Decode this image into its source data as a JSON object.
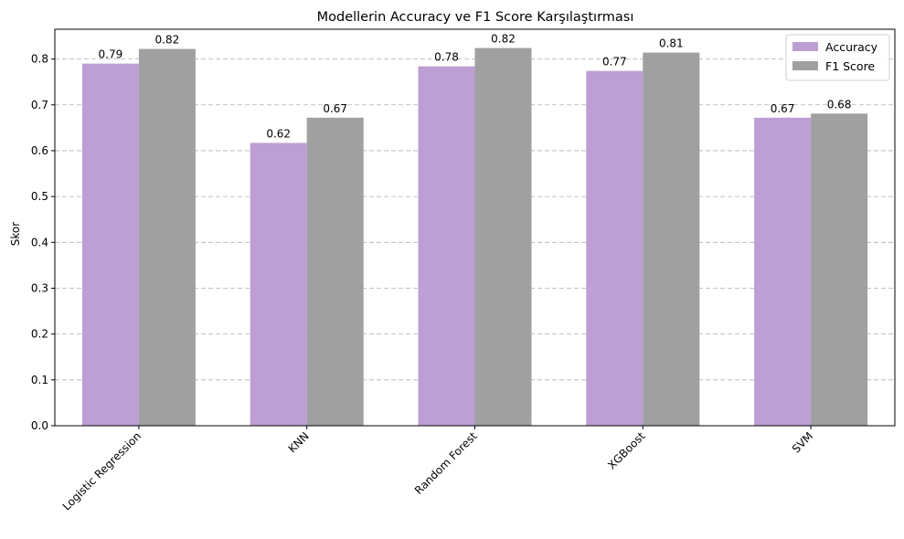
{
  "chart_data": {
    "type": "bar",
    "title": "Modellerin Accuracy ve F1 Score Karşılaştırması",
    "xlabel": "",
    "ylabel": "Skor",
    "categories": [
      "Logistic Regression",
      "KNN",
      "Random Forest",
      "XGBoost",
      "SVM"
    ],
    "series": [
      {
        "name": "Accuracy",
        "color": "#bc9fd3",
        "values": [
          0.79,
          0.617,
          0.784,
          0.774,
          0.672
        ],
        "labels": [
          "0.79",
          "0.62",
          "0.78",
          "0.77",
          "0.67"
        ]
      },
      {
        "name": "F1 Score",
        "color": "#a0a0a0",
        "values": [
          0.822,
          0.672,
          0.824,
          0.814,
          0.681
        ],
        "labels": [
          "0.82",
          "0.67",
          "0.82",
          "0.81",
          "0.68"
        ]
      }
    ],
    "ylim": [
      0,
      0.865
    ],
    "yticks": [
      "0.0",
      "0.1",
      "0.2",
      "0.3",
      "0.4",
      "0.5",
      "0.6",
      "0.7",
      "0.8"
    ],
    "grid": "y-dashed",
    "legend_position": "top-right"
  }
}
